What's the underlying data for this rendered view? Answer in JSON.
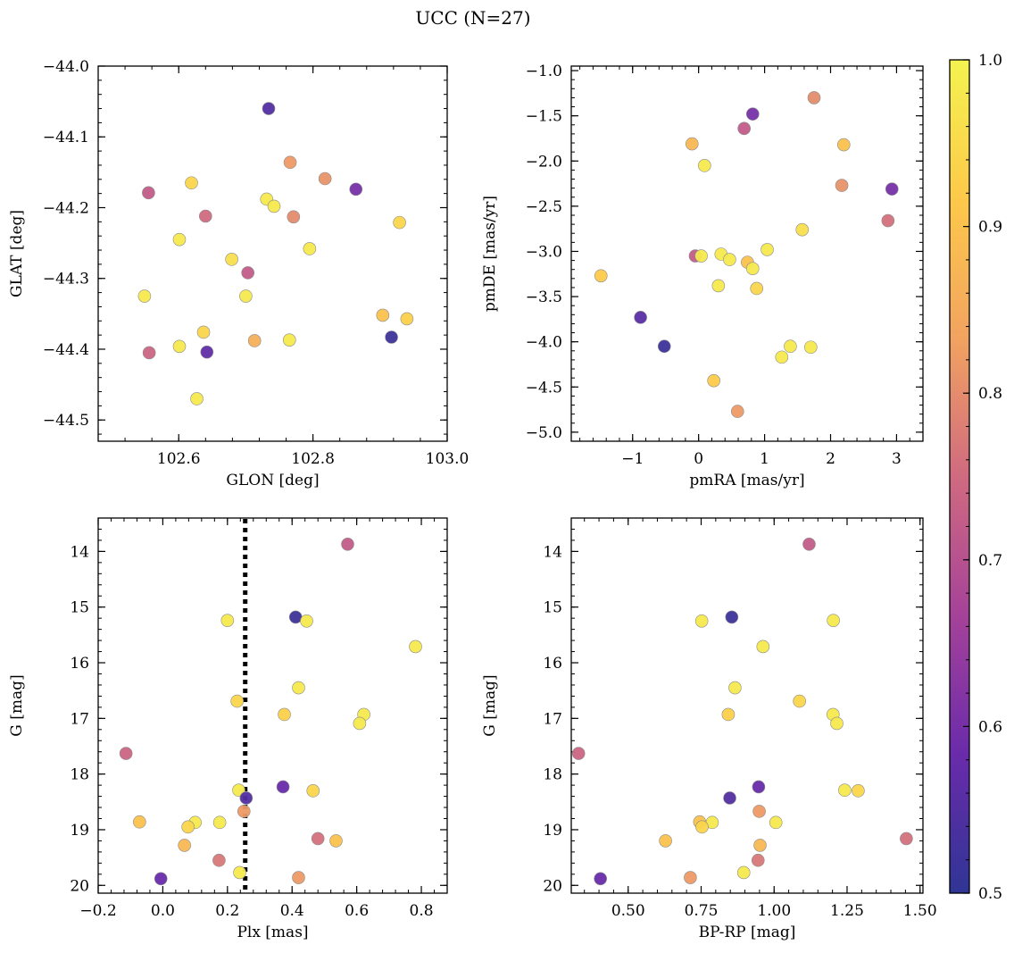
{
  "figure": {
    "title": "UCC (N=27)",
    "colorbar": {
      "min": 0.5,
      "max": 1.0,
      "ticks": [
        "0.5",
        "0.6",
        "0.7",
        "0.8",
        "0.9",
        "1.0"
      ],
      "colormap": "plasma",
      "colors": [
        "#2f3595",
        "#6a2bab",
        "#a54299",
        "#d06a80",
        "#f2a360",
        "#fdc94a",
        "#f4f34f"
      ]
    }
  },
  "chart_data": [
    {
      "type": "scatter",
      "xlabel": "GLON [deg]",
      "ylabel": "GLAT [deg]",
      "xlim": [
        102.48,
        103.0
      ],
      "ylim": [
        -44.53,
        -44.0
      ],
      "y_inverted": false,
      "xticks": [
        102.6,
        102.8,
        103.0
      ],
      "xtick_labels": [
        "102.6",
        "102.8",
        "103.0"
      ],
      "yticks": [
        -44.0,
        -44.1,
        -44.2,
        -44.3,
        -44.4,
        -44.5
      ],
      "ytick_labels": [
        "−44.0",
        "−44.1",
        "−44.2",
        "−44.3",
        "−44.4",
        "−44.5"
      ],
      "points": [
        {
          "x": 102.734,
          "y": -44.06,
          "c": 0.55
        },
        {
          "x": 102.766,
          "y": -44.136,
          "c": 0.82
        },
        {
          "x": 102.818,
          "y": -44.159,
          "c": 0.81
        },
        {
          "x": 102.864,
          "y": -44.174,
          "c": 0.6
        },
        {
          "x": 102.619,
          "y": -44.165,
          "c": 0.94
        },
        {
          "x": 102.555,
          "y": -44.179,
          "c": 0.72
        },
        {
          "x": 102.731,
          "y": -44.188,
          "c": 0.98
        },
        {
          "x": 102.742,
          "y": -44.198,
          "c": 0.98
        },
        {
          "x": 102.64,
          "y": -44.212,
          "c": 0.75
        },
        {
          "x": 102.771,
          "y": -44.213,
          "c": 0.8
        },
        {
          "x": 102.929,
          "y": -44.221,
          "c": 0.94
        },
        {
          "x": 102.601,
          "y": -44.245,
          "c": 0.98
        },
        {
          "x": 102.795,
          "y": -44.258,
          "c": 0.98
        },
        {
          "x": 102.679,
          "y": -44.273,
          "c": 0.96
        },
        {
          "x": 102.703,
          "y": -44.292,
          "c": 0.72
        },
        {
          "x": 102.549,
          "y": -44.325,
          "c": 0.98
        },
        {
          "x": 102.7,
          "y": -44.325,
          "c": 0.98
        },
        {
          "x": 102.904,
          "y": -44.352,
          "c": 0.9
        },
        {
          "x": 102.94,
          "y": -44.357,
          "c": 0.93
        },
        {
          "x": 102.637,
          "y": -44.376,
          "c": 0.94
        },
        {
          "x": 102.917,
          "y": -44.383,
          "c": 0.52
        },
        {
          "x": 102.713,
          "y": -44.388,
          "c": 0.86
        },
        {
          "x": 102.765,
          "y": -44.387,
          "c": 0.98
        },
        {
          "x": 102.601,
          "y": -44.396,
          "c": 0.98
        },
        {
          "x": 102.642,
          "y": -44.404,
          "c": 0.57
        },
        {
          "x": 102.556,
          "y": -44.405,
          "c": 0.74
        },
        {
          "x": 102.627,
          "y": -44.47,
          "c": 0.98
        }
      ]
    },
    {
      "type": "scatter",
      "xlabel": "pmRA [mas/yr]",
      "ylabel": "pmDE [mas/yr]",
      "xlim": [
        -1.93,
        3.4
      ],
      "ylim": [
        -5.1,
        -0.95
      ],
      "y_inverted": false,
      "xticks": [
        -1,
        0,
        1,
        2,
        3
      ],
      "xtick_labels": [
        "−1",
        "0",
        "1",
        "2",
        "3"
      ],
      "yticks": [
        -1.0,
        -1.5,
        -2.0,
        -2.5,
        -3.0,
        -3.5,
        -4.0,
        -4.5,
        -5.0
      ],
      "ytick_labels": [
        "−1.0",
        "−1.5",
        "−2.0",
        "−2.5",
        "−3.0",
        "−3.5",
        "−4.0",
        "−4.5",
        "−5.0"
      ],
      "points": [
        {
          "x": 1.75,
          "y": -1.3,
          "c": 0.8
        },
        {
          "x": 0.82,
          "y": -1.48,
          "c": 0.6
        },
        {
          "x": 0.69,
          "y": -1.64,
          "c": 0.72
        },
        {
          "x": -0.1,
          "y": -1.81,
          "c": 0.88
        },
        {
          "x": 2.2,
          "y": -1.82,
          "c": 0.9
        },
        {
          "x": 0.09,
          "y": -2.05,
          "c": 0.98
        },
        {
          "x": 2.17,
          "y": -2.27,
          "c": 0.81
        },
        {
          "x": 2.93,
          "y": -2.31,
          "c": 0.6
        },
        {
          "x": 2.87,
          "y": -2.66,
          "c": 0.76
        },
        {
          "x": 1.57,
          "y": -2.76,
          "c": 0.96
        },
        {
          "x": 1.04,
          "y": -2.98,
          "c": 0.98
        },
        {
          "x": 0.34,
          "y": -3.03,
          "c": 0.98
        },
        {
          "x": -0.05,
          "y": -3.05,
          "c": 0.72
        },
        {
          "x": 0.04,
          "y": -3.05,
          "c": 0.98
        },
        {
          "x": 0.47,
          "y": -3.09,
          "c": 0.98
        },
        {
          "x": 0.74,
          "y": -3.12,
          "c": 0.9
        },
        {
          "x": 0.82,
          "y": -3.19,
          "c": 0.98
        },
        {
          "x": -1.48,
          "y": -3.27,
          "c": 0.92
        },
        {
          "x": 0.3,
          "y": -3.38,
          "c": 0.98
        },
        {
          "x": 0.88,
          "y": -3.41,
          "c": 0.94
        },
        {
          "x": -0.88,
          "y": -3.73,
          "c": 0.56
        },
        {
          "x": -0.52,
          "y": -4.05,
          "c": 0.52
        },
        {
          "x": 1.39,
          "y": -4.05,
          "c": 0.98
        },
        {
          "x": 1.7,
          "y": -4.06,
          "c": 0.98
        },
        {
          "x": 1.26,
          "y": -4.17,
          "c": 0.98
        },
        {
          "x": 0.23,
          "y": -4.43,
          "c": 0.92
        },
        {
          "x": 0.59,
          "y": -4.77,
          "c": 0.82
        }
      ]
    },
    {
      "type": "scatter",
      "xlabel": "Plx [mas]",
      "ylabel": "G [mag]",
      "xlim": [
        -0.2,
        0.88
      ],
      "ylim": [
        13.4,
        20.14
      ],
      "y_inverted": true,
      "xticks": [
        -0.2,
        0.0,
        0.2,
        0.4,
        0.6,
        0.8
      ],
      "xtick_labels": [
        "−0.2",
        "0.0",
        "0.2",
        "0.4",
        "0.6",
        "0.8"
      ],
      "yticks": [
        14,
        15,
        16,
        17,
        18,
        19,
        20
      ],
      "ytick_labels": [
        "14",
        "15",
        "16",
        "17",
        "18",
        "19",
        "20"
      ],
      "vline": {
        "x": 0.255,
        "style": "dotted",
        "color": "#000000"
      },
      "points": [
        {
          "x": 0.572,
          "y": 13.87,
          "c": 0.72
        },
        {
          "x": 0.411,
          "y": 15.18,
          "c": 0.52
        },
        {
          "x": 0.2,
          "y": 15.24,
          "c": 0.98
        },
        {
          "x": 0.445,
          "y": 15.25,
          "c": 0.98
        },
        {
          "x": 0.782,
          "y": 15.71,
          "c": 0.98
        },
        {
          "x": 0.42,
          "y": 16.45,
          "c": 0.98
        },
        {
          "x": 0.23,
          "y": 16.69,
          "c": 0.94
        },
        {
          "x": 0.376,
          "y": 16.93,
          "c": 0.93
        },
        {
          "x": 0.622,
          "y": 16.93,
          "c": 0.98
        },
        {
          "x": 0.609,
          "y": 17.09,
          "c": 0.98
        },
        {
          "x": -0.114,
          "y": 17.63,
          "c": 0.74
        },
        {
          "x": 0.372,
          "y": 18.23,
          "c": 0.58
        },
        {
          "x": 0.235,
          "y": 18.29,
          "c": 0.98
        },
        {
          "x": 0.465,
          "y": 18.3,
          "c": 0.94
        },
        {
          "x": 0.258,
          "y": 18.43,
          "c": 0.55
        },
        {
          "x": 0.251,
          "y": 18.67,
          "c": 0.82
        },
        {
          "x": -0.072,
          "y": 18.86,
          "c": 0.9
        },
        {
          "x": 0.1,
          "y": 18.87,
          "c": 0.98
        },
        {
          "x": 0.176,
          "y": 18.87,
          "c": 0.98
        },
        {
          "x": 0.078,
          "y": 18.95,
          "c": 0.94
        },
        {
          "x": 0.48,
          "y": 19.16,
          "c": 0.76
        },
        {
          "x": 0.536,
          "y": 19.2,
          "c": 0.9
        },
        {
          "x": 0.067,
          "y": 19.28,
          "c": 0.88
        },
        {
          "x": 0.174,
          "y": 19.55,
          "c": 0.77
        },
        {
          "x": 0.238,
          "y": 19.77,
          "c": 0.98
        },
        {
          "x": 0.42,
          "y": 19.86,
          "c": 0.82
        },
        {
          "x": -0.006,
          "y": 19.88,
          "c": 0.58
        }
      ]
    },
    {
      "type": "scatter",
      "xlabel": "BP-RP [mag]",
      "ylabel": "G [mag]",
      "xlim": [
        0.305,
        1.51
      ],
      "ylim": [
        13.4,
        20.14
      ],
      "y_inverted": true,
      "xticks": [
        0.5,
        0.75,
        1.0,
        1.25,
        1.5
      ],
      "xtick_labels": [
        "0.50",
        "0.75",
        "1.00",
        "1.25",
        "1.50"
      ],
      "yticks": [
        14,
        15,
        16,
        17,
        18,
        19,
        20
      ],
      "ytick_labels": [
        "14",
        "15",
        "16",
        "17",
        "18",
        "19",
        "20"
      ],
      "points": [
        {
          "x": 1.12,
          "y": 13.87,
          "c": 0.72
        },
        {
          "x": 0.855,
          "y": 15.18,
          "c": 0.52
        },
        {
          "x": 0.752,
          "y": 15.25,
          "c": 0.98
        },
        {
          "x": 1.203,
          "y": 15.24,
          "c": 0.98
        },
        {
          "x": 0.962,
          "y": 15.71,
          "c": 0.98
        },
        {
          "x": 0.866,
          "y": 16.45,
          "c": 0.98
        },
        {
          "x": 1.087,
          "y": 16.69,
          "c": 0.94
        },
        {
          "x": 0.843,
          "y": 16.93,
          "c": 0.93
        },
        {
          "x": 1.202,
          "y": 16.93,
          "c": 0.98
        },
        {
          "x": 1.215,
          "y": 17.09,
          "c": 0.98
        },
        {
          "x": 0.33,
          "y": 17.63,
          "c": 0.74
        },
        {
          "x": 0.947,
          "y": 18.23,
          "c": 0.58
        },
        {
          "x": 1.242,
          "y": 18.29,
          "c": 0.98
        },
        {
          "x": 1.288,
          "y": 18.3,
          "c": 0.94
        },
        {
          "x": 0.848,
          "y": 18.43,
          "c": 0.55
        },
        {
          "x": 0.949,
          "y": 18.67,
          "c": 0.82
        },
        {
          "x": 0.745,
          "y": 18.86,
          "c": 0.9
        },
        {
          "x": 0.788,
          "y": 18.87,
          "c": 0.98
        },
        {
          "x": 1.006,
          "y": 18.87,
          "c": 0.98
        },
        {
          "x": 0.753,
          "y": 18.95,
          "c": 0.94
        },
        {
          "x": 1.453,
          "y": 19.16,
          "c": 0.76
        },
        {
          "x": 0.628,
          "y": 19.2,
          "c": 0.9
        },
        {
          "x": 0.952,
          "y": 19.28,
          "c": 0.88
        },
        {
          "x": 0.945,
          "y": 19.55,
          "c": 0.77
        },
        {
          "x": 0.896,
          "y": 19.77,
          "c": 0.98
        },
        {
          "x": 0.713,
          "y": 19.86,
          "c": 0.82
        },
        {
          "x": 0.405,
          "y": 19.88,
          "c": 0.58
        }
      ]
    }
  ]
}
